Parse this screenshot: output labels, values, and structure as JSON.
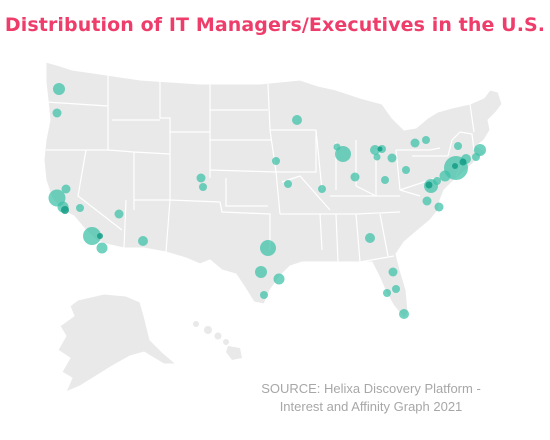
{
  "title": "Distribution of IT Managers/Executives in the U.S.",
  "source": {
    "line1": "SOURCE: Helixa Discovery Platform -",
    "line2": "Interest and Affinity Graph 2021"
  },
  "colors": {
    "title": "#ee3d6a",
    "land": "#e9e9e9",
    "border": "#ffffff",
    "bubble": "#3cc0a8",
    "bubble_dark": "#149c86",
    "source": "#a7a7a7"
  },
  "map": {
    "region": "United States",
    "legend": "none"
  }
}
